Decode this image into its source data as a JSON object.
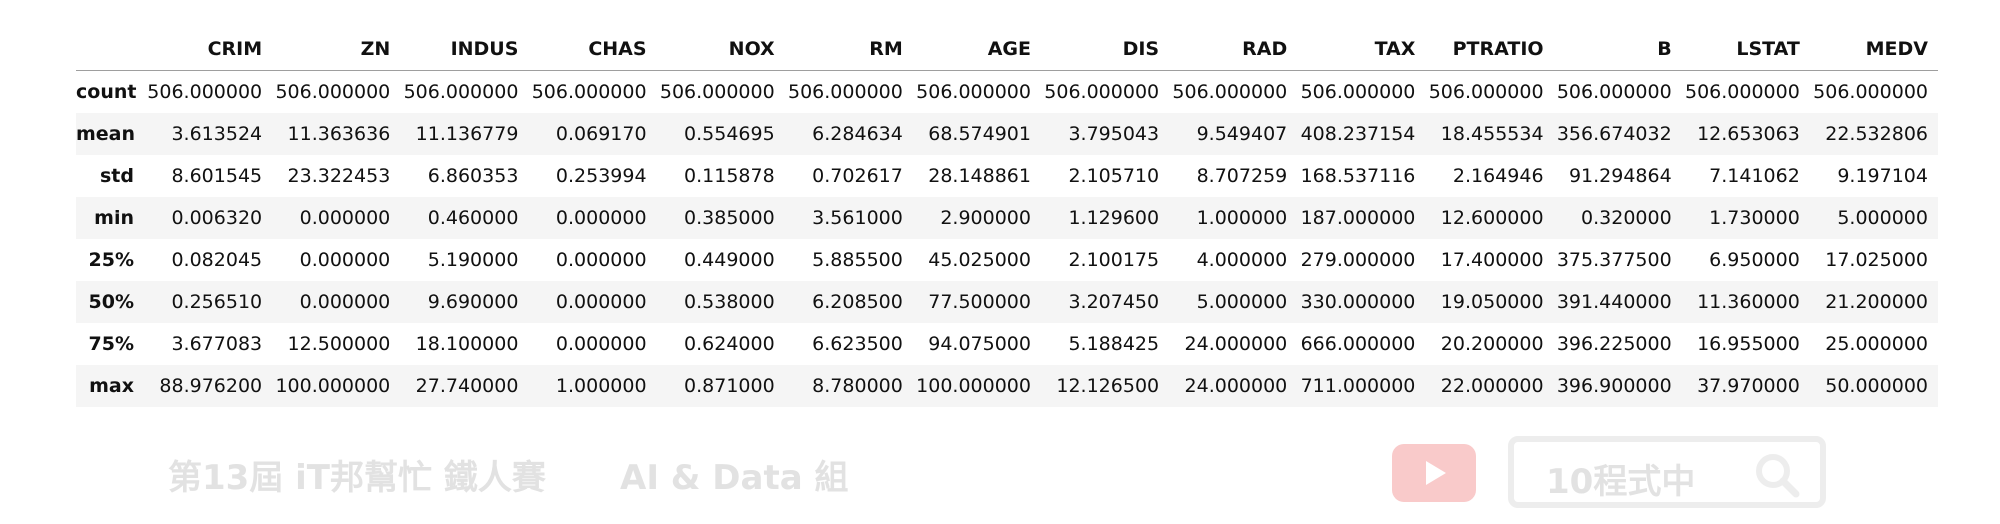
{
  "table": {
    "columns": [
      "",
      "CRIM",
      "ZN",
      "INDUS",
      "CHAS",
      "NOX",
      "RM",
      "AGE",
      "DIS",
      "RAD",
      "TAX",
      "PTRATIO",
      "B",
      "LSTAT",
      "MEDV"
    ],
    "rows": [
      {
        "label": "count",
        "values": [
          "506.000000",
          "506.000000",
          "506.000000",
          "506.000000",
          "506.000000",
          "506.000000",
          "506.000000",
          "506.000000",
          "506.000000",
          "506.000000",
          "506.000000",
          "506.000000",
          "506.000000",
          "506.000000"
        ]
      },
      {
        "label": "mean",
        "values": [
          "3.613524",
          "11.363636",
          "11.136779",
          "0.069170",
          "0.554695",
          "6.284634",
          "68.574901",
          "3.795043",
          "9.549407",
          "408.237154",
          "18.455534",
          "356.674032",
          "12.653063",
          "22.532806"
        ]
      },
      {
        "label": "std",
        "values": [
          "8.601545",
          "23.322453",
          "6.860353",
          "0.253994",
          "0.115878",
          "0.702617",
          "28.148861",
          "2.105710",
          "8.707259",
          "168.537116",
          "2.164946",
          "91.294864",
          "7.141062",
          "9.197104"
        ]
      },
      {
        "label": "min",
        "values": [
          "0.006320",
          "0.000000",
          "0.460000",
          "0.000000",
          "0.385000",
          "3.561000",
          "2.900000",
          "1.129600",
          "1.000000",
          "187.000000",
          "12.600000",
          "0.320000",
          "1.730000",
          "5.000000"
        ]
      },
      {
        "label": "25%",
        "values": [
          "0.082045",
          "0.000000",
          "5.190000",
          "0.000000",
          "0.449000",
          "5.885500",
          "45.025000",
          "2.100175",
          "4.000000",
          "279.000000",
          "17.400000",
          "375.377500",
          "6.950000",
          "17.025000"
        ]
      },
      {
        "label": "50%",
        "values": [
          "0.256510",
          "0.000000",
          "9.690000",
          "0.000000",
          "0.538000",
          "6.208500",
          "77.500000",
          "3.207450",
          "5.000000",
          "330.000000",
          "19.050000",
          "391.440000",
          "11.360000",
          "21.200000"
        ]
      },
      {
        "label": "75%",
        "values": [
          "3.677083",
          "12.500000",
          "18.100000",
          "0.000000",
          "0.624000",
          "6.623500",
          "94.075000",
          "5.188425",
          "24.000000",
          "666.000000",
          "20.200000",
          "396.225000",
          "16.955000",
          "25.000000"
        ]
      },
      {
        "label": "max",
        "values": [
          "88.976200",
          "100.000000",
          "27.740000",
          "1.000000",
          "0.871000",
          "8.780000",
          "100.000000",
          "12.126500",
          "24.000000",
          "711.000000",
          "22.000000",
          "396.900000",
          "37.970000",
          "50.000000"
        ]
      }
    ]
  },
  "watermark": {
    "left_text": "第13屆 iT邦幫忙 鐵人賽",
    "mid_text": "AI & Data 組",
    "search_text": "10程式中",
    "icons": [
      "youtube-play-icon",
      "search-icon"
    ],
    "colors": {
      "text": "#e2e2e2",
      "youtube": "#f9caca",
      "border": "#ededed"
    }
  }
}
